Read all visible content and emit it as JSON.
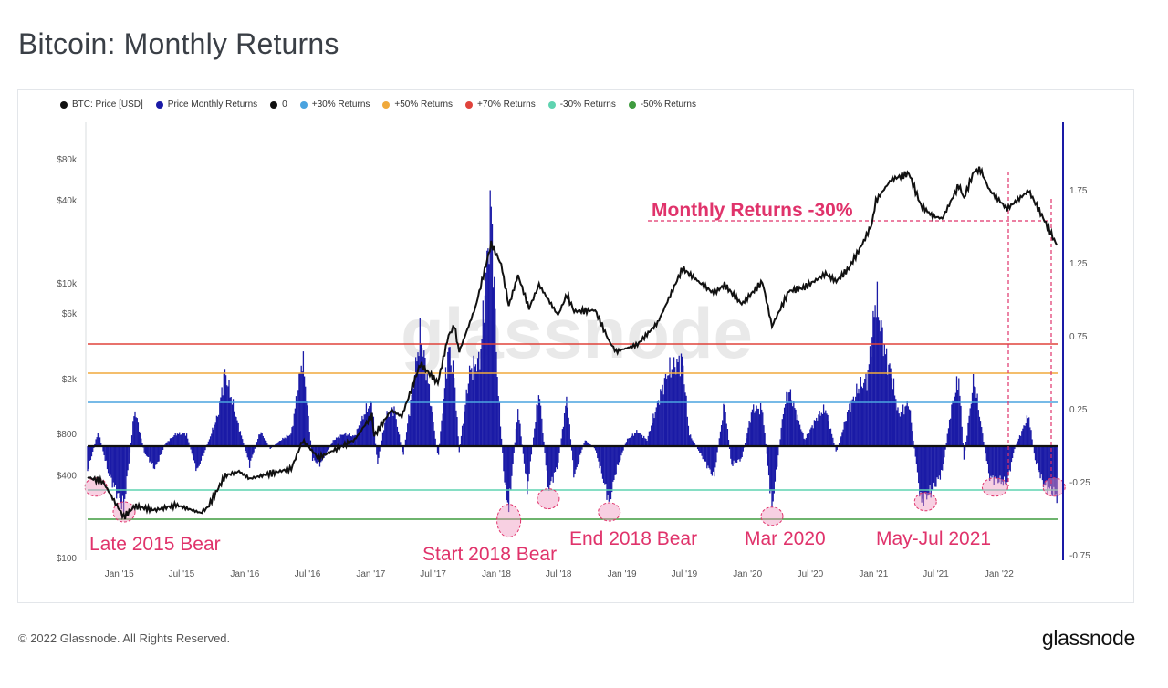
{
  "page": {
    "title": "Bitcoin: Monthly Returns"
  },
  "legend": [
    {
      "label": "BTC: Price [USD]",
      "color": "#111111"
    },
    {
      "label": "Price Monthly Returns",
      "color": "#1a1aa6"
    },
    {
      "label": "0",
      "color": "#111111"
    },
    {
      "label": "+30% Returns",
      "color": "#4aa3df"
    },
    {
      "label": "+50% Returns",
      "color": "#f0a93b"
    },
    {
      "label": "+70% Returns",
      "color": "#e0433b"
    },
    {
      "label": "-30% Returns",
      "color": "#5fd3b0"
    },
    {
      "label": "-50% Returns",
      "color": "#3f9b3f"
    }
  ],
  "watermark": "glassnode",
  "chart_data": {
    "type": "line",
    "x_ticks": [
      "Jan '15",
      "Jul '15",
      "Jan '16",
      "Jul '16",
      "Jan '17",
      "Jul '17",
      "Jan '18",
      "Jul '18",
      "Jan '19",
      "Jul '19",
      "Jan '20",
      "Jul '20",
      "Jan '21",
      "Jul '21",
      "Jan '22"
    ],
    "y_left": {
      "scale": "log",
      "ticks": [
        "$80k",
        "$40k",
        "$10k",
        "$6k",
        "$2k",
        "$800",
        "$400",
        "$100"
      ]
    },
    "y_right": {
      "ticks": [
        "1.75",
        "1.25",
        "0.75",
        "0.25",
        "-0.25",
        "-0.75"
      ],
      "ylim": [
        -0.75,
        2.15
      ]
    },
    "reference_lines": [
      {
        "name": "0",
        "value": 0,
        "color": "#111111"
      },
      {
        "name": "+30% Returns",
        "value": 0.3,
        "color": "#4aa3df"
      },
      {
        "name": "+50% Returns",
        "value": 0.5,
        "color": "#f0a93b"
      },
      {
        "name": "+70% Returns",
        "value": 0.7,
        "color": "#e0433b"
      },
      {
        "name": "-30% Returns",
        "value": -0.3,
        "color": "#5fd3b0"
      },
      {
        "name": "-50% Returns",
        "value": -0.5,
        "color": "#3f9b3f"
      }
    ],
    "series": [
      {
        "name": "BTC: Price [USD]",
        "color": "#111111",
        "points": [
          [
            "2014-10-01",
            390
          ],
          [
            "2014-11-15",
            360
          ],
          [
            "2015-01-14",
            200
          ],
          [
            "2015-02-15",
            240
          ],
          [
            "2015-04-15",
            225
          ],
          [
            "2015-06-15",
            245
          ],
          [
            "2015-08-25",
            215
          ],
          [
            "2015-09-15",
            235
          ],
          [
            "2015-11-05",
            400
          ],
          [
            "2015-12-15",
            430
          ],
          [
            "2016-01-15",
            380
          ],
          [
            "2016-03-15",
            415
          ],
          [
            "2016-05-15",
            450
          ],
          [
            "2016-06-17",
            720
          ],
          [
            "2016-08-02",
            540
          ],
          [
            "2016-09-15",
            610
          ],
          [
            "2016-11-15",
            730
          ],
          [
            "2017-01-04",
            1100
          ],
          [
            "2017-01-11",
            780
          ],
          [
            "2017-03-01",
            1200
          ],
          [
            "2017-04-01",
            1080
          ],
          [
            "2017-05-25",
            2600
          ],
          [
            "2017-07-15",
            1900
          ],
          [
            "2017-08-15",
            4200
          ],
          [
            "2017-09-01",
            4900
          ],
          [
            "2017-09-15",
            3200
          ],
          [
            "2017-11-01",
            6700
          ],
          [
            "2017-12-17",
            19500
          ],
          [
            "2018-01-15",
            13800
          ],
          [
            "2018-02-06",
            6900
          ],
          [
            "2018-03-05",
            11500
          ],
          [
            "2018-04-06",
            6600
          ],
          [
            "2018-05-05",
            9800
          ],
          [
            "2018-06-29",
            5900
          ],
          [
            "2018-07-25",
            8300
          ],
          [
            "2018-08-15",
            6300
          ],
          [
            "2018-10-15",
            6400
          ],
          [
            "2018-11-25",
            3800
          ],
          [
            "2018-12-15",
            3200
          ],
          [
            "2019-02-15",
            3600
          ],
          [
            "2019-04-15",
            5200
          ],
          [
            "2019-06-26",
            12900
          ],
          [
            "2019-08-15",
            10200
          ],
          [
            "2019-09-25",
            8500
          ],
          [
            "2019-10-26",
            9800
          ],
          [
            "2019-12-15",
            7100
          ],
          [
            "2020-02-13",
            10300
          ],
          [
            "2020-03-12",
            4900
          ],
          [
            "2020-04-30",
            8800
          ],
          [
            "2020-06-15",
            9400
          ],
          [
            "2020-08-15",
            11800
          ],
          [
            "2020-09-15",
            10400
          ],
          [
            "2020-10-21",
            12900
          ],
          [
            "2020-11-30",
            19500
          ],
          [
            "2020-12-27",
            27000
          ],
          [
            "2021-01-08",
            40000
          ],
          [
            "2021-02-21",
            57000
          ],
          [
            "2021-04-14",
            63500
          ],
          [
            "2021-05-19",
            37000
          ],
          [
            "2021-06-22",
            31000
          ],
          [
            "2021-07-20",
            29800
          ],
          [
            "2021-09-06",
            52000
          ],
          [
            "2021-09-21",
            42000
          ],
          [
            "2021-10-20",
            65500
          ],
          [
            "2021-11-08",
            67500
          ],
          [
            "2021-12-04",
            48000
          ],
          [
            "2022-01-24",
            35000
          ],
          [
            "2022-03-28",
            47500
          ],
          [
            "2022-05-09",
            30000
          ],
          [
            "2022-06-18",
            19000
          ]
        ]
      },
      {
        "name": "Price Monthly Returns",
        "color": "#1a1aa6",
        "points": [
          [
            "2014-10-01",
            -0.2
          ],
          [
            "2014-11-01",
            0.12
          ],
          [
            "2014-12-01",
            -0.22
          ],
          [
            "2015-01-14",
            -0.5
          ],
          [
            "2015-02-15",
            0.3
          ],
          [
            "2015-03-15",
            -0.05
          ],
          [
            "2015-04-15",
            -0.18
          ],
          [
            "2015-05-15",
            0.02
          ],
          [
            "2015-06-15",
            0.1
          ],
          [
            "2015-07-15",
            0.1
          ],
          [
            "2015-08-15",
            -0.2
          ],
          [
            "2015-09-15",
            0.02
          ],
          [
            "2015-10-15",
            0.25
          ],
          [
            "2015-11-04",
            0.6
          ],
          [
            "2015-12-05",
            0.25
          ],
          [
            "2016-01-15",
            -0.15
          ],
          [
            "2016-02-15",
            0.12
          ],
          [
            "2016-03-15",
            -0.02
          ],
          [
            "2016-04-15",
            0.05
          ],
          [
            "2016-05-15",
            0.1
          ],
          [
            "2016-06-17",
            0.72
          ],
          [
            "2016-07-15",
            -0.1
          ],
          [
            "2016-08-05",
            -0.15
          ],
          [
            "2016-09-15",
            0.05
          ],
          [
            "2016-10-15",
            0.1
          ],
          [
            "2016-11-15",
            0.08
          ],
          [
            "2016-12-20",
            0.3
          ],
          [
            "2017-01-05",
            0.35
          ],
          [
            "2017-01-20",
            -0.15
          ],
          [
            "2017-02-15",
            0.25
          ],
          [
            "2017-03-10",
            0.3
          ],
          [
            "2017-04-05",
            -0.08
          ],
          [
            "2017-05-25",
            0.9
          ],
          [
            "2017-06-15",
            0.55
          ],
          [
            "2017-07-16",
            -0.1
          ],
          [
            "2017-08-15",
            0.8
          ],
          [
            "2017-09-01",
            0.55
          ],
          [
            "2017-09-15",
            -0.05
          ],
          [
            "2017-10-15",
            0.6
          ],
          [
            "2017-11-15",
            0.7
          ],
          [
            "2017-12-17",
            1.95
          ],
          [
            "2018-01-05",
            0.5
          ],
          [
            "2018-01-25",
            -0.3
          ],
          [
            "2018-02-06",
            -0.5
          ],
          [
            "2018-03-05",
            0.3
          ],
          [
            "2018-04-01",
            -0.35
          ],
          [
            "2018-05-05",
            0.45
          ],
          [
            "2018-06-01",
            -0.35
          ],
          [
            "2018-06-29",
            -0.15
          ],
          [
            "2018-07-25",
            0.4
          ],
          [
            "2018-08-15",
            -0.25
          ],
          [
            "2018-09-15",
            0.05
          ],
          [
            "2018-10-15",
            -0.02
          ],
          [
            "2018-11-25",
            -0.45
          ],
          [
            "2018-12-15",
            -0.2
          ],
          [
            "2019-01-15",
            0.05
          ],
          [
            "2019-02-15",
            0.12
          ],
          [
            "2019-03-15",
            0.05
          ],
          [
            "2019-04-15",
            0.35
          ],
          [
            "2019-05-15",
            0.6
          ],
          [
            "2019-06-26",
            0.7
          ],
          [
            "2019-07-15",
            0.1
          ],
          [
            "2019-08-15",
            -0.05
          ],
          [
            "2019-09-25",
            -0.25
          ],
          [
            "2019-10-26",
            0.35
          ],
          [
            "2019-11-15",
            -0.15
          ],
          [
            "2019-12-15",
            -0.1
          ],
          [
            "2020-01-15",
            0.3
          ],
          [
            "2020-02-13",
            0.3
          ],
          [
            "2020-03-12",
            -0.5
          ],
          [
            "2020-04-15",
            0.3
          ],
          [
            "2020-05-01",
            0.45
          ],
          [
            "2020-06-15",
            0.05
          ],
          [
            "2020-07-25",
            0.25
          ],
          [
            "2020-08-15",
            0.3
          ],
          [
            "2020-09-15",
            -0.05
          ],
          [
            "2020-10-21",
            0.3
          ],
          [
            "2020-11-15",
            0.45
          ],
          [
            "2020-12-15",
            0.55
          ],
          [
            "2021-01-08",
            1.2
          ],
          [
            "2021-02-08",
            0.7
          ],
          [
            "2021-02-21",
            0.6
          ],
          [
            "2021-03-15",
            0.25
          ],
          [
            "2021-04-14",
            0.35
          ],
          [
            "2021-05-19",
            -0.45
          ],
          [
            "2021-06-22",
            -0.35
          ],
          [
            "2021-07-20",
            -0.2
          ],
          [
            "2021-08-15",
            0.3
          ],
          [
            "2021-09-06",
            0.55
          ],
          [
            "2021-09-21",
            -0.1
          ],
          [
            "2021-10-20",
            0.55
          ],
          [
            "2021-11-08",
            0.2
          ],
          [
            "2021-12-04",
            -0.25
          ],
          [
            "2022-01-24",
            -0.3
          ],
          [
            "2022-02-15",
            -0.02
          ],
          [
            "2022-03-28",
            0.25
          ],
          [
            "2022-04-15",
            -0.1
          ],
          [
            "2022-05-09",
            -0.3
          ],
          [
            "2022-06-18",
            -0.4
          ]
        ]
      }
    ]
  },
  "annotations": {
    "late_2015": "Late 2015 Bear",
    "start_2018": "Start 2018 Bear",
    "end_2018": "End 2018 Bear",
    "mar_2020": "Mar 2020",
    "may_jul_2021": "May-Jul 2021",
    "monthly_returns": "Monthly Returns -30%"
  },
  "footer": {
    "copyright": "© 2022 Glassnode. All Rights Reserved.",
    "logo": "glassnode"
  }
}
